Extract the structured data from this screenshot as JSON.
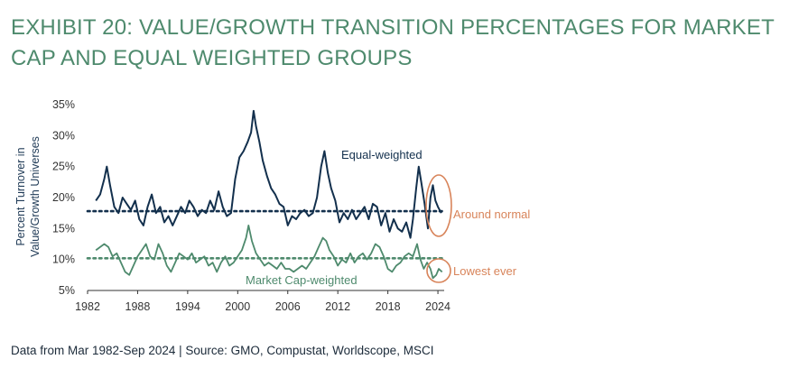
{
  "title": "EXHIBIT 20: VALUE/GROWTH TRANSITION PERCENTAGES FOR MARKET CAP AND EQUAL WEIGHTED GROUPS",
  "source": "Data from Mar 1982-Sep 2024 | Source: GMO, Compustat, Worldscope, MSCI",
  "colors": {
    "equal": "#13304d",
    "cap": "#4e8a6d",
    "highlight": "#d8845a",
    "axis": "#333333"
  },
  "chart_data": {
    "type": "line",
    "ylabel_lines": [
      "Percent Turnover in",
      "Value/Growth Universes"
    ],
    "ylim": [
      5,
      35
    ],
    "yticks": [
      5,
      10,
      15,
      20,
      25,
      30,
      35
    ],
    "ytick_labels": [
      "5%",
      "10%",
      "15%",
      "20%",
      "25%",
      "30%",
      "35%"
    ],
    "xlim": [
      1982,
      2024.75
    ],
    "xticks": [
      1982,
      1988,
      1994,
      2000,
      2006,
      2012,
      2018,
      2024
    ],
    "xtick_labels": [
      "1982",
      "1988",
      "1994",
      "2000",
      "2006",
      "2012",
      "2018",
      "2024"
    ],
    "grid": false,
    "series": [
      {
        "name": "Equal-weighted",
        "color": "#13304d",
        "avg": 17.8,
        "points": [
          [
            1983.0,
            19.5
          ],
          [
            1983.5,
            20.5
          ],
          [
            1984.0,
            23.0
          ],
          [
            1984.3,
            25.0
          ],
          [
            1984.7,
            22.0
          ],
          [
            1985.2,
            18.5
          ],
          [
            1985.7,
            17.5
          ],
          [
            1986.2,
            20.0
          ],
          [
            1986.7,
            19.0
          ],
          [
            1987.2,
            18.0
          ],
          [
            1987.7,
            19.5
          ],
          [
            1988.2,
            16.5
          ],
          [
            1988.7,
            15.5
          ],
          [
            1989.2,
            18.5
          ],
          [
            1989.7,
            20.5
          ],
          [
            1990.2,
            17.5
          ],
          [
            1990.7,
            18.5
          ],
          [
            1991.2,
            16.0
          ],
          [
            1991.7,
            17.0
          ],
          [
            1992.2,
            15.5
          ],
          [
            1992.7,
            17.0
          ],
          [
            1993.2,
            18.5
          ],
          [
            1993.7,
            17.5
          ],
          [
            1994.2,
            19.5
          ],
          [
            1994.7,
            18.5
          ],
          [
            1995.2,
            17.0
          ],
          [
            1995.7,
            18.0
          ],
          [
            1996.2,
            17.5
          ],
          [
            1996.7,
            19.5
          ],
          [
            1997.2,
            18.0
          ],
          [
            1997.7,
            21.0
          ],
          [
            1998.2,
            18.5
          ],
          [
            1998.7,
            17.0
          ],
          [
            1999.2,
            17.5
          ],
          [
            1999.7,
            23.0
          ],
          [
            2000.2,
            26.5
          ],
          [
            2000.7,
            27.5
          ],
          [
            2001.2,
            29.0
          ],
          [
            2001.6,
            30.5
          ],
          [
            2001.9,
            34.0
          ],
          [
            2002.2,
            31.5
          ],
          [
            2002.6,
            29.0
          ],
          [
            2003.0,
            26.0
          ],
          [
            2003.5,
            23.5
          ],
          [
            2004.0,
            21.5
          ],
          [
            2004.5,
            20.5
          ],
          [
            2005.0,
            19.0
          ],
          [
            2005.5,
            18.5
          ],
          [
            2006.0,
            15.5
          ],
          [
            2006.5,
            17.0
          ],
          [
            2007.0,
            16.5
          ],
          [
            2007.5,
            17.5
          ],
          [
            2008.0,
            18.0
          ],
          [
            2008.5,
            17.0
          ],
          [
            2009.0,
            17.5
          ],
          [
            2009.5,
            20.0
          ],
          [
            2010.0,
            25.0
          ],
          [
            2010.4,
            27.5
          ],
          [
            2010.8,
            24.0
          ],
          [
            2011.2,
            21.5
          ],
          [
            2011.7,
            19.5
          ],
          [
            2012.2,
            16.0
          ],
          [
            2012.7,
            17.5
          ],
          [
            2013.2,
            16.5
          ],
          [
            2013.7,
            18.0
          ],
          [
            2014.2,
            16.5
          ],
          [
            2014.7,
            17.5
          ],
          [
            2015.2,
            18.5
          ],
          [
            2015.7,
            16.5
          ],
          [
            2016.2,
            19.0
          ],
          [
            2016.7,
            18.5
          ],
          [
            2017.2,
            15.5
          ],
          [
            2017.7,
            17.5
          ],
          [
            2018.2,
            14.5
          ],
          [
            2018.7,
            16.5
          ],
          [
            2019.2,
            15.0
          ],
          [
            2019.7,
            14.5
          ],
          [
            2020.2,
            16.0
          ],
          [
            2020.7,
            13.5
          ],
          [
            2021.0,
            16.5
          ],
          [
            2021.4,
            21.5
          ],
          [
            2021.7,
            25.0
          ],
          [
            2022.0,
            22.5
          ],
          [
            2022.4,
            19.0
          ],
          [
            2022.8,
            15.0
          ],
          [
            2023.1,
            20.0
          ],
          [
            2023.4,
            22.0
          ],
          [
            2023.7,
            19.5
          ],
          [
            2024.0,
            18.5
          ],
          [
            2024.4,
            17.5
          ]
        ]
      },
      {
        "name": "Market Cap-weighted",
        "color": "#4e8a6d",
        "avg": 10.2,
        "points": [
          [
            1983.0,
            11.5
          ],
          [
            1983.5,
            12.0
          ],
          [
            1984.0,
            12.5
          ],
          [
            1984.5,
            12.0
          ],
          [
            1985.0,
            10.5
          ],
          [
            1985.5,
            11.0
          ],
          [
            1986.0,
            9.5
          ],
          [
            1986.5,
            8.0
          ],
          [
            1987.0,
            7.5
          ],
          [
            1987.5,
            9.0
          ],
          [
            1988.0,
            10.5
          ],
          [
            1988.5,
            11.5
          ],
          [
            1989.0,
            12.5
          ],
          [
            1989.5,
            10.5
          ],
          [
            1990.0,
            10.0
          ],
          [
            1990.5,
            12.5
          ],
          [
            1991.0,
            11.0
          ],
          [
            1991.5,
            9.0
          ],
          [
            1992.0,
            8.0
          ],
          [
            1992.5,
            9.5
          ],
          [
            1993.0,
            11.0
          ],
          [
            1993.5,
            10.5
          ],
          [
            1994.0,
            10.0
          ],
          [
            1994.5,
            11.0
          ],
          [
            1995.0,
            9.5
          ],
          [
            1995.5,
            10.0
          ],
          [
            1996.0,
            10.5
          ],
          [
            1996.5,
            9.0
          ],
          [
            1997.0,
            9.5
          ],
          [
            1997.5,
            8.0
          ],
          [
            1998.0,
            9.5
          ],
          [
            1998.5,
            10.5
          ],
          [
            1999.0,
            9.0
          ],
          [
            1999.5,
            9.5
          ],
          [
            2000.0,
            10.5
          ],
          [
            2000.5,
            11.5
          ],
          [
            2001.0,
            13.5
          ],
          [
            2001.3,
            15.5
          ],
          [
            2001.7,
            13.0
          ],
          [
            2002.2,
            11.0
          ],
          [
            2002.7,
            10.0
          ],
          [
            2003.2,
            9.0
          ],
          [
            2003.7,
            9.5
          ],
          [
            2004.2,
            9.0
          ],
          [
            2004.7,
            8.5
          ],
          [
            2005.2,
            9.5
          ],
          [
            2005.7,
            8.5
          ],
          [
            2006.2,
            8.5
          ],
          [
            2006.7,
            8.0
          ],
          [
            2007.2,
            8.5
          ],
          [
            2007.7,
            9.0
          ],
          [
            2008.2,
            8.5
          ],
          [
            2008.7,
            9.5
          ],
          [
            2009.2,
            10.5
          ],
          [
            2009.7,
            12.0
          ],
          [
            2010.2,
            13.5
          ],
          [
            2010.6,
            13.0
          ],
          [
            2011.0,
            11.5
          ],
          [
            2011.5,
            10.5
          ],
          [
            2012.0,
            9.0
          ],
          [
            2012.5,
            10.0
          ],
          [
            2013.0,
            9.5
          ],
          [
            2013.5,
            11.0
          ],
          [
            2014.0,
            9.5
          ],
          [
            2014.5,
            10.5
          ],
          [
            2015.0,
            11.0
          ],
          [
            2015.5,
            10.0
          ],
          [
            2016.0,
            11.0
          ],
          [
            2016.5,
            12.5
          ],
          [
            2017.0,
            12.0
          ],
          [
            2017.5,
            10.5
          ],
          [
            2018.0,
            8.5
          ],
          [
            2018.5,
            8.0
          ],
          [
            2019.0,
            9.0
          ],
          [
            2019.5,
            9.5
          ],
          [
            2020.0,
            10.5
          ],
          [
            2020.5,
            11.0
          ],
          [
            2021.0,
            10.5
          ],
          [
            2021.5,
            12.5
          ],
          [
            2021.9,
            10.0
          ],
          [
            2022.3,
            8.5
          ],
          [
            2022.7,
            9.5
          ],
          [
            2023.1,
            8.5
          ],
          [
            2023.4,
            7.0
          ],
          [
            2023.8,
            7.5
          ],
          [
            2024.1,
            8.5
          ],
          [
            2024.5,
            8.0
          ]
        ]
      }
    ],
    "annotations": {
      "equal_label": "Equal-weighted",
      "cap_label": "Market Cap-weighted",
      "around_normal": "Around normal",
      "lowest_ever": "Lowest ever"
    }
  }
}
